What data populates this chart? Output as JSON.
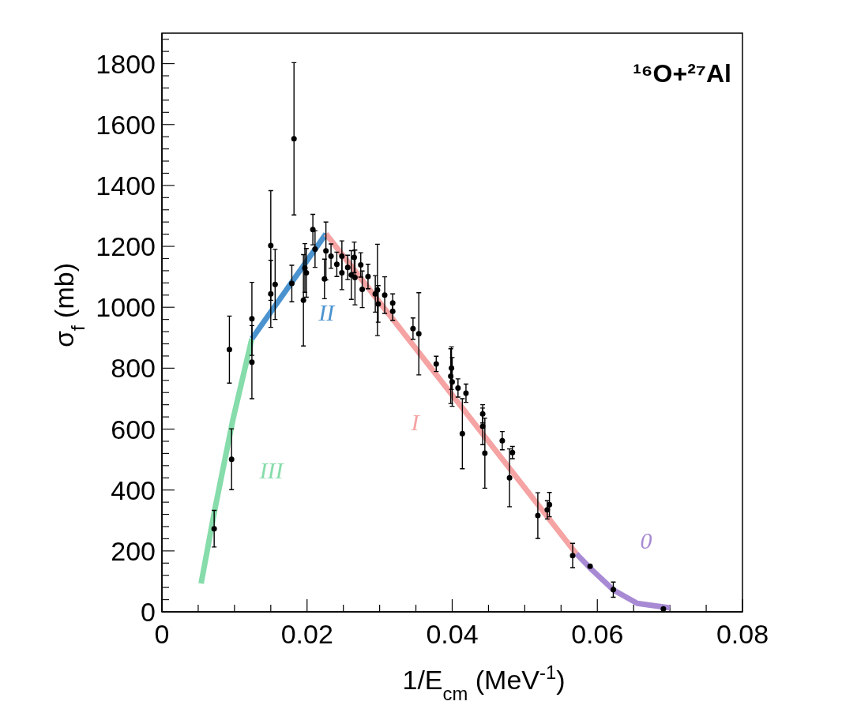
{
  "chart_data": {
    "type": "scatter",
    "title": "¹⁶O+²⁷Al",
    "xlabel": "1/E$_{cm}$ (MeV$^{-1}$)",
    "ylabel": "σ$_{f}$ (mb)",
    "xlim": [
      0,
      0.08
    ],
    "ylim": [
      0,
      1900
    ],
    "xticks": [
      0,
      {
        "value": 0.005,
        "label": null
      },
      {
        "value": 0.01,
        "label": null
      },
      {
        "value": 0.015,
        "label": null
      },
      0.02,
      {
        "value": 0.025,
        "label": null
      },
      {
        "value": 0.03,
        "label": null
      },
      {
        "value": 0.035,
        "label": null
      },
      0.04,
      {
        "value": 0.045,
        "label": null
      },
      {
        "value": 0.05,
        "label": null
      },
      {
        "value": 0.055,
        "label": null
      },
      0.06,
      {
        "value": 0.065,
        "label": null
      },
      {
        "value": 0.07,
        "label": null
      },
      {
        "value": 0.075,
        "label": null
      },
      0.08
    ],
    "yticks": [
      0,
      {
        "value": 40,
        "label": null
      },
      {
        "value": 80,
        "label": null
      },
      {
        "value": 120,
        "label": null
      },
      {
        "value": 160,
        "label": null
      },
      200,
      {
        "value": 240,
        "label": null
      },
      {
        "value": 280,
        "label": null
      },
      {
        "value": 320,
        "label": null
      },
      {
        "value": 360,
        "label": null
      },
      400,
      {
        "value": 440,
        "label": null
      },
      {
        "value": 480,
        "label": null
      },
      {
        "value": 520,
        "label": null
      },
      {
        "value": 560,
        "label": null
      },
      600,
      {
        "value": 640,
        "label": null
      },
      {
        "value": 680,
        "label": null
      },
      {
        "value": 720,
        "label": null
      },
      {
        "value": 760,
        "label": null
      },
      800,
      {
        "value": 840,
        "label": null
      },
      {
        "value": 880,
        "label": null
      },
      {
        "value": 920,
        "label": null
      },
      {
        "value": 960,
        "label": null
      },
      1000,
      {
        "value": 1040,
        "label": null
      },
      {
        "value": 1080,
        "label": null
      },
      {
        "value": 1120,
        "label": null
      },
      {
        "value": 1160,
        "label": null
      },
      1200,
      {
        "value": 1240,
        "label": null
      },
      {
        "value": 1280,
        "label": null
      },
      {
        "value": 1320,
        "label": null
      },
      {
        "value": 1360,
        "label": null
      },
      1400,
      {
        "value": 1440,
        "label": null
      },
      {
        "value": 1480,
        "label": null
      },
      {
        "value": 1520,
        "label": null
      },
      {
        "value": 1560,
        "label": null
      },
      1600,
      {
        "value": 1640,
        "label": null
      },
      {
        "value": 1680,
        "label": null
      },
      {
        "value": 1720,
        "label": null
      },
      {
        "value": 1760,
        "label": null
      },
      1800,
      {
        "value": 1840,
        "label": null
      },
      {
        "value": 1880,
        "label": null
      }
    ],
    "marker": "circle",
    "series": [
      {
        "type": "line",
        "name": "III",
        "marker": "none",
        "color": "#86dcaa",
        "x": [
          0.0054,
          0.0073,
          0.0098,
          0.0124
        ],
        "values": [
          93,
          337,
          633,
          897
        ]
      },
      {
        "type": "line",
        "name": "II",
        "marker": "none",
        "color": "#4b93cf",
        "x": [
          0.0124,
          0.0226
        ],
        "values": [
          897,
          1241
        ]
      },
      {
        "type": "line",
        "name": "I",
        "marker": "none",
        "color": "#f5a3a3",
        "x": [
          0.0226,
          0.04,
          0.0571
        ],
        "values": [
          1241,
          712,
          191
        ]
      },
      {
        "type": "line",
        "name": "0",
        "marker": "none",
        "color": "#a88ad4",
        "x": [
          0.0571,
          0.059,
          0.0622,
          0.0655,
          0.07
        ],
        "values": [
          191,
          144,
          72,
          28,
          13
        ]
      },
      {
        "type": "scatter",
        "color": "#000000",
        "x": [
          0.0072,
          0.0093,
          0.0096,
          0.0124,
          0.0124,
          0.015,
          0.015,
          0.0156,
          0.0179,
          0.0182,
          0.0195,
          0.0197,
          0.0199,
          0.0208,
          0.0211,
          0.0224,
          0.0226,
          0.0233,
          0.0241,
          0.0248,
          0.0248,
          0.0256,
          0.0261,
          0.0265,
          0.0266,
          0.0274,
          0.0276,
          0.0284,
          0.0294,
          0.0297,
          0.0298,
          0.0307,
          0.0318,
          0.0318,
          0.0346,
          0.0354,
          0.0378,
          0.0398,
          0.0399,
          0.04,
          0.0408,
          0.0414,
          0.0419,
          0.0442,
          0.0442,
          0.0445,
          0.0469,
          0.0479,
          0.0483,
          0.0518,
          0.0531,
          0.0534,
          0.0566,
          0.059,
          0.0622,
          0.0691
        ],
        "values": [
          273,
          861,
          501,
          962,
          820,
          1203,
          1044,
          1075,
          1078,
          1553,
          1023,
          1129,
          1113,
          1255,
          1191,
          1093,
          1185,
          1168,
          1141,
          1168,
          1113,
          1131,
          1106,
          1164,
          1098,
          1139,
          1059,
          1101,
          1044,
          1057,
          1011,
          1040,
          1014,
          987,
          930,
          913,
          814,
          774,
          800,
          755,
          735,
          585,
          718,
          650,
          609,
          521,
          562,
          440,
          523,
          316,
          335,
          352,
          185,
          150,
          73,
          10
        ],
        "errors": [
          60,
          110,
          100,
          120,
          120,
          180,
          110,
          115,
          60,
          250,
          150,
          80,
          80,
          50,
          60,
          65,
          95,
          40,
          40,
          50,
          55,
          40,
          80,
          50,
          90,
          40,
          60,
          40,
          60,
          150,
          60,
          60,
          30,
          30,
          35,
          135,
          25,
          90,
          70,
          80,
          30,
          115,
          30,
          30,
          60,
          115,
          30,
          95,
          20,
          75,
          30,
          40,
          40,
          null,
          25,
          null
        ]
      }
    ]
  }
}
